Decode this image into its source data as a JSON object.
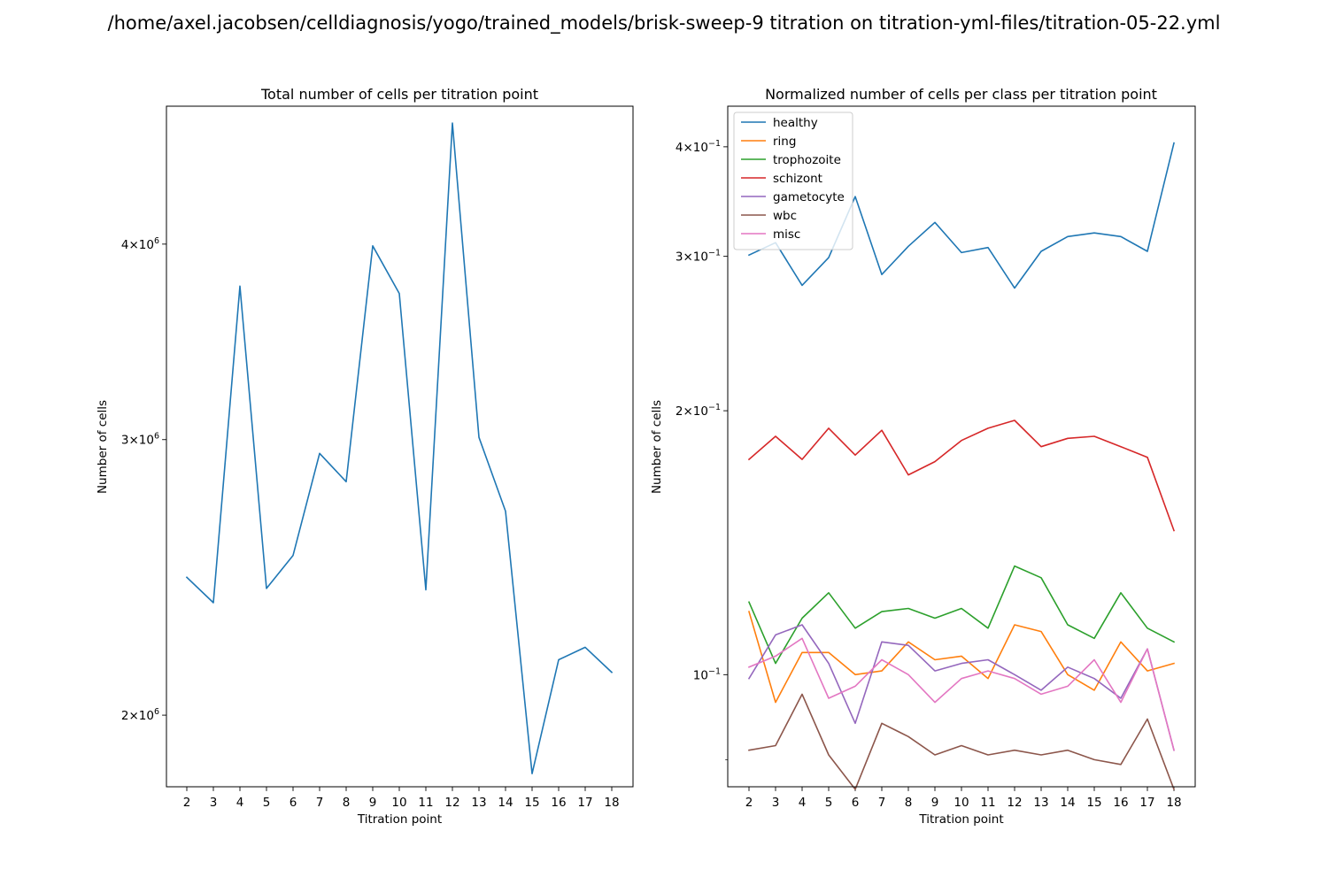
{
  "figure": {
    "suptitle": "/home/axel.jacobsen/celldiagnosis/yogo/trained_models/brisk-sweep-9 titration on titration-yml-files/titration-05-22.yml"
  },
  "chart_data": [
    {
      "type": "line",
      "title": "Total number of cells per titration point",
      "xlabel": "Titration point",
      "ylabel": "Number of cells",
      "yscale": "log",
      "ylim": [
        1800000,
        4900000
      ],
      "grid": false,
      "legend": null,
      "x": [
        2,
        3,
        4,
        5,
        6,
        7,
        8,
        9,
        10,
        11,
        12,
        13,
        14,
        15,
        16,
        17,
        18
      ],
      "major_yticks": [
        {
          "value": 2000000,
          "mant": "2",
          "base": "10",
          "exp": "6"
        },
        {
          "value": 3000000,
          "mant": "3",
          "base": "10",
          "exp": "6"
        },
        {
          "value": 4000000,
          "mant": "4",
          "base": "10",
          "exp": "6"
        }
      ],
      "minor_yticks": [],
      "series": [
        {
          "color": "#1f77b4",
          "values": [
            2450000,
            2360000,
            3760000,
            2410000,
            2530000,
            2940000,
            2820000,
            3990000,
            3720000,
            2405000,
            4780000,
            3010000,
            2700000,
            1835000,
            2170000,
            2210000,
            2130000
          ]
        }
      ]
    },
    {
      "type": "line",
      "title": "Normalized number of cells per class per titration point",
      "xlabel": "Titration point",
      "ylabel": "Number of cells",
      "yscale": "log",
      "ylim": [
        0.0745,
        0.445
      ],
      "grid": false,
      "legend": "top-left",
      "x": [
        2,
        3,
        4,
        5,
        6,
        7,
        8,
        9,
        10,
        11,
        12,
        13,
        14,
        15,
        16,
        17,
        18
      ],
      "major_yticks": [
        {
          "value": 0.1,
          "mant": "",
          "base": "10",
          "exp": "−1"
        },
        {
          "value": 0.2,
          "mant": "2",
          "base": "10",
          "exp": "−1"
        },
        {
          "value": 0.3,
          "mant": "3",
          "base": "10",
          "exp": "−1"
        },
        {
          "value": 0.4,
          "mant": "4",
          "base": "10",
          "exp": "−1"
        }
      ],
      "minor_yticks": [
        0.08
      ],
      "series": [
        {
          "name": "healthy",
          "color": "#1f77b4",
          "values": [
            0.301,
            0.311,
            0.278,
            0.299,
            0.351,
            0.286,
            0.308,
            0.328,
            0.303,
            0.307,
            0.276,
            0.304,
            0.316,
            0.319,
            0.316,
            0.304,
            0.404
          ]
        },
        {
          "name": "ring",
          "color": "#ff7f0e",
          "values": [
            0.118,
            0.093,
            0.106,
            0.106,
            0.1,
            0.101,
            0.109,
            0.104,
            0.105,
            0.099,
            0.114,
            0.112,
            0.1,
            0.096,
            0.109,
            0.101,
            0.103
          ]
        },
        {
          "name": "trophozoite",
          "color": "#2ca02c",
          "values": [
            0.121,
            0.103,
            0.116,
            0.124,
            0.113,
            0.118,
            0.119,
            0.116,
            0.119,
            0.113,
            0.133,
            0.129,
            0.114,
            0.11,
            0.124,
            0.113,
            0.109
          ]
        },
        {
          "name": "schizont",
          "color": "#d62728",
          "values": [
            0.176,
            0.187,
            0.176,
            0.191,
            0.178,
            0.19,
            0.169,
            0.175,
            0.185,
            0.191,
            0.195,
            0.182,
            0.186,
            0.187,
            0.182,
            0.177,
            0.146
          ]
        },
        {
          "name": "gametocyte",
          "color": "#9467bd",
          "values": [
            0.099,
            0.111,
            0.114,
            0.103,
            0.088,
            0.109,
            0.108,
            0.101,
            0.103,
            0.104,
            0.1,
            0.096,
            0.102,
            0.099,
            0.094,
            0.107,
            0.082
          ]
        },
        {
          "name": "wbc",
          "color": "#8c564b",
          "values": [
            0.082,
            0.083,
            0.095,
            0.081,
            0.074,
            0.088,
            0.085,
            0.081,
            0.083,
            0.081,
            0.082,
            0.081,
            0.082,
            0.08,
            0.079,
            0.089,
            0.074
          ]
        },
        {
          "name": "misc",
          "color": "#e377c2",
          "values": [
            0.102,
            0.105,
            0.11,
            0.094,
            0.097,
            0.104,
            0.1,
            0.093,
            0.099,
            0.101,
            0.099,
            0.095,
            0.097,
            0.104,
            0.093,
            0.107,
            0.082
          ]
        }
      ]
    }
  ]
}
